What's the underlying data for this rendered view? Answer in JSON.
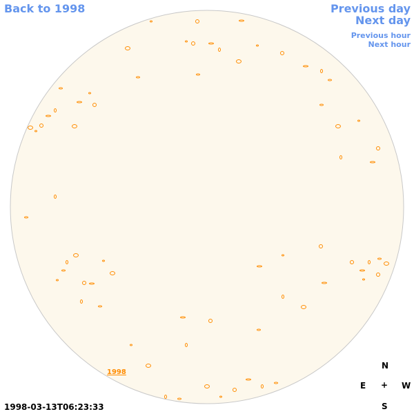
{
  "nav": {
    "back_year": "Back to 1998",
    "previous_day": "Previous day",
    "next_day": "Next day",
    "previous_hour": "Previous hour",
    "next_hour": "Next hour"
  },
  "image": {
    "year_link": "1998",
    "timestamp": "1998-03-13T06:23:33"
  },
  "compass": {
    "north": "N",
    "east": "E",
    "center": "+",
    "west": "W",
    "south": "S"
  }
}
